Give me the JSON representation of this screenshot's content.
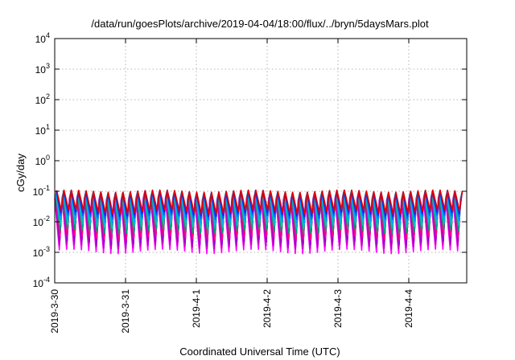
{
  "chart_data": {
    "type": "line",
    "title": "/data/run/goesPlots/archive/2019-04-04/18:00/flux/../bryn/5daysMars.plot",
    "xlabel": "Coordinated Universal Time (UTC)",
    "ylabel": "cGy/day",
    "yscale": "log",
    "ylim": [
      0.0001,
      10000
    ],
    "grid": true,
    "legend": "none",
    "x_ticks": [
      "2019-3-30",
      "2019-3-31",
      "2019-4-1",
      "2019-4-2",
      "2019-4-3",
      "2019-4-4"
    ],
    "y_ticks": [
      {
        "base": "10",
        "exp": "-4"
      },
      {
        "base": "10",
        "exp": "-3"
      },
      {
        "base": "10",
        "exp": "-2"
      },
      {
        "base": "10",
        "exp": "-1"
      },
      {
        "base": "10",
        "exp": "0"
      },
      {
        "base": "10",
        "exp": "1"
      },
      {
        "base": "10",
        "exp": "2"
      },
      {
        "base": "10",
        "exp": "3"
      },
      {
        "base": "10",
        "exp": "4"
      }
    ],
    "x_range_days": [
      0,
      5.78
    ],
    "pattern": {
      "period_hours": 2.5,
      "peak_times_of_day_shift": 0.04,
      "description": "sawtooth periodic dose rate"
    },
    "series": [
      {
        "color": "#ff00ff",
        "peak": 0.055,
        "trough": 0.0009
      },
      {
        "color": "#c000c0",
        "peak": 0.06,
        "trough": 0.0013
      },
      {
        "color": "#9400d3",
        "peak": 0.065,
        "trough": 0.0017
      },
      {
        "color": "#ff0080",
        "peak": 0.07,
        "trough": 0.0025
      },
      {
        "color": "#009e73",
        "peak": 0.075,
        "trough": 0.004
      },
      {
        "color": "#00c0c0",
        "peak": 0.08,
        "trough": 0.006
      },
      {
        "color": "#00a0ff",
        "peak": 0.085,
        "trough": 0.009
      },
      {
        "color": "#0060ff",
        "peak": 0.09,
        "trough": 0.012
      },
      {
        "color": "#2020e0",
        "peak": 0.095,
        "trough": 0.015
      },
      {
        "color": "#e00000",
        "peak": 0.1,
        "trough": 0.018
      }
    ]
  }
}
